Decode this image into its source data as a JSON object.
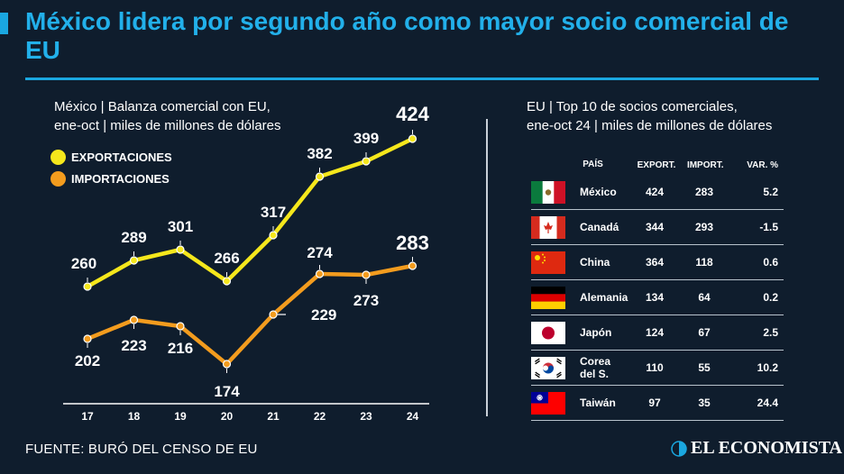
{
  "title": "México lidera por segundo año como mayor socio comercial de EU",
  "left_panel": {
    "subtitle_line1": "México | Balanza comercial con EU,",
    "subtitle_line2": "ene-oct | miles de millones de dólares"
  },
  "right_panel": {
    "subtitle_line1": "EU | Top 10 de socios comerciales,",
    "subtitle_line2": "ene-oct 24 | miles de millones de dólares"
  },
  "colors": {
    "background": "#0f1d2d",
    "accent": "#1aa7e0",
    "exports": "#f5e71c",
    "imports": "#f39c1e"
  },
  "chart_data": {
    "type": "line",
    "x": [
      "17",
      "18",
      "19",
      "20",
      "21",
      "22",
      "23",
      "24"
    ],
    "series": [
      {
        "name": "EXPORTACIONES",
        "color": "#f5e71c",
        "values": [
          260,
          289,
          301,
          266,
          317,
          382,
          399,
          424
        ]
      },
      {
        "name": "IMPORTACIONES",
        "color": "#f39c1e",
        "values": [
          202,
          223,
          216,
          174,
          229,
          274,
          273,
          283
        ]
      }
    ],
    "ylim": [
      150,
      430
    ],
    "grid": false,
    "legend": "top-left"
  },
  "table": {
    "headers": {
      "country": "PAÍS",
      "exports": "EXPORT.",
      "imports": "IMPORT.",
      "var": "VAR. %"
    },
    "rows": [
      {
        "flag": "mexico-flag",
        "country": "México",
        "exports": "424",
        "imports": "283",
        "var": "5.2"
      },
      {
        "flag": "canada-flag",
        "country": "Canadá",
        "exports": "344",
        "imports": "293",
        "var": "-1.5"
      },
      {
        "flag": "china-flag",
        "country": "China",
        "exports": "364",
        "imports": "118",
        "var": "0.6"
      },
      {
        "flag": "germany-flag",
        "country": "Alemania",
        "exports": "134",
        "imports": "64",
        "var": "0.2"
      },
      {
        "flag": "japan-flag",
        "country": "Japón",
        "exports": "124",
        "imports": "67",
        "var": "2.5"
      },
      {
        "flag": "korea-flag",
        "country_line1": "Corea",
        "country_line2": "del S.",
        "exports": "110",
        "imports": "55",
        "var": "10.2"
      },
      {
        "flag": "taiwan-flag",
        "country": "Taiwán",
        "exports": "97",
        "imports": "35",
        "var": "24.4"
      }
    ]
  },
  "source": "FUENTE: BURÓ DEL CENSO DE EU",
  "brand": "EL ECONOMISTA"
}
